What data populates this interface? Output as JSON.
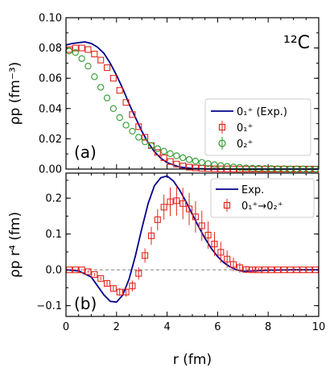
{
  "chart_data": [
    {
      "panel": "(a)",
      "type": "line",
      "annotation": "¹²C",
      "ylabel": "ρp (fm⁻³)",
      "xlim": [
        0,
        10
      ],
      "ylim": [
        0,
        0.1
      ],
      "yticks": [
        0.0,
        0.02,
        0.04,
        0.06,
        0.08,
        0.1
      ],
      "ytick_labels": [
        "0.00",
        "0.02",
        "0.04",
        "0.06",
        "0.08",
        "0.10"
      ],
      "legend_position": "center-right",
      "series": [
        {
          "name": "0₁⁺ (Exp.)",
          "style": "line",
          "color": "#00008b",
          "x": [
            0,
            0.25,
            0.5,
            0.75,
            1.0,
            1.25,
            1.5,
            1.75,
            2.0,
            2.25,
            2.5,
            2.75,
            3.0,
            3.25,
            3.5,
            3.75,
            4.0,
            4.5,
            5.0,
            5.5,
            6.0,
            7.0,
            8.0,
            10.0
          ],
          "y": [
            0.082,
            0.083,
            0.0835,
            0.084,
            0.083,
            0.0805,
            0.0765,
            0.07,
            0.062,
            0.053,
            0.043,
            0.034,
            0.025,
            0.0175,
            0.0115,
            0.0072,
            0.0043,
            0.0013,
            0.0004,
            0.0001,
            0.0,
            0.0,
            0.0,
            0.0
          ]
        },
        {
          "name": "0₁⁺",
          "style": "square-markers",
          "color": "#e8251f",
          "x": [
            0.125,
            0.375,
            0.625,
            0.875,
            1.125,
            1.375,
            1.625,
            1.875,
            2.125,
            2.375,
            2.625,
            2.875,
            3.125,
            3.375,
            3.625,
            3.875,
            4.125,
            4.375,
            4.625,
            4.875,
            5.125,
            5.375,
            5.625,
            5.875,
            6.125,
            6.375,
            6.625,
            6.875,
            7.125,
            7.375,
            7.625,
            7.875,
            8.125,
            8.375,
            8.625,
            8.875,
            9.125,
            9.375,
            9.625,
            9.875
          ],
          "y": [
            0.079,
            0.08,
            0.08,
            0.079,
            0.076,
            0.072,
            0.067,
            0.06,
            0.052,
            0.044,
            0.036,
            0.028,
            0.021,
            0.0155,
            0.011,
            0.0075,
            0.005,
            0.0033,
            0.0021,
            0.0013,
            0.0008,
            0.0005,
            0.0003,
            0.0002,
            0.0001,
            0.0001,
            0.0,
            0.0,
            0.0,
            0.0,
            0.0,
            0.0,
            0.0,
            0.0,
            0.0,
            0.0,
            0.0,
            0.0,
            0.0,
            0.0
          ]
        },
        {
          "name": "0₂⁺",
          "style": "circle-markers",
          "color": "#2e9a2e",
          "x": [
            0.125,
            0.375,
            0.625,
            0.875,
            1.125,
            1.375,
            1.625,
            1.875,
            2.125,
            2.375,
            2.625,
            2.875,
            3.125,
            3.375,
            3.625,
            3.875,
            4.125,
            4.375,
            4.625,
            4.875,
            5.125,
            5.375,
            5.625,
            5.875,
            6.125,
            6.375,
            6.625,
            6.875,
            7.125,
            7.375,
            7.625,
            7.875,
            8.125,
            8.375,
            8.625,
            8.875,
            9.125,
            9.375,
            9.625,
            9.875
          ],
          "y": [
            0.078,
            0.077,
            0.073,
            0.068,
            0.061,
            0.054,
            0.047,
            0.04,
            0.034,
            0.029,
            0.025,
            0.021,
            0.018,
            0.0155,
            0.0135,
            0.0118,
            0.0102,
            0.0088,
            0.0075,
            0.0063,
            0.0053,
            0.0044,
            0.0036,
            0.0029,
            0.0023,
            0.0018,
            0.0014,
            0.0011,
            0.0008,
            0.0006,
            0.0005,
            0.0004,
            0.0003,
            0.0002,
            0.0002,
            0.0001,
            0.0001,
            0.0001,
            0.0,
            0.0
          ]
        }
      ]
    },
    {
      "panel": "(b)",
      "type": "line",
      "xlabel": "r (fm)",
      "ylabel": "ρp r⁴ (fm)",
      "xlim": [
        0,
        10
      ],
      "ylim": [
        -0.13,
        0.27
      ],
      "xticks": [
        0,
        2,
        4,
        6,
        8,
        10
      ],
      "xtick_labels": [
        "0",
        "2",
        "4",
        "6",
        "8",
        "10"
      ],
      "yticks": [
        -0.1,
        0.0,
        0.1,
        0.2
      ],
      "ytick_labels": [
        "−0.1",
        "0.0",
        "0.1",
        "0.2"
      ],
      "reference_line_y": 0,
      "legend_position": "top-right",
      "series": [
        {
          "name": "Exp.",
          "style": "line",
          "color": "#00008b",
          "x": [
            0,
            0.5,
            1.0,
            1.25,
            1.5,
            1.75,
            2.0,
            2.25,
            2.5,
            2.75,
            3.0,
            3.25,
            3.5,
            3.75,
            4.0,
            4.25,
            4.5,
            4.75,
            5.0,
            5.25,
            5.5,
            5.75,
            6.0,
            6.25,
            6.5,
            6.75,
            7.0,
            7.5,
            8.0,
            9.0,
            10.0
          ],
          "y": [
            0.0,
            -0.003,
            -0.02,
            -0.045,
            -0.07,
            -0.088,
            -0.09,
            -0.07,
            -0.025,
            0.04,
            0.115,
            0.185,
            0.235,
            0.257,
            0.262,
            0.248,
            0.222,
            0.19,
            0.155,
            0.12,
            0.088,
            0.06,
            0.037,
            0.02,
            0.008,
            0.0,
            -0.004,
            -0.003,
            -0.001,
            0.0,
            0.0
          ]
        },
        {
          "name": "0₁⁺→0₂⁺",
          "style": "square-markers-with-errorbars",
          "color": "#e8251f",
          "x": [
            0.125,
            0.375,
            0.625,
            0.875,
            1.125,
            1.375,
            1.625,
            1.875,
            2.125,
            2.375,
            2.625,
            2.875,
            3.125,
            3.375,
            3.625,
            3.875,
            4.125,
            4.375,
            4.625,
            4.875,
            5.125,
            5.375,
            5.625,
            5.875,
            6.125,
            6.375,
            6.625,
            6.875,
            7.125,
            7.375,
            7.625,
            7.875,
            8.125,
            8.375,
            8.625,
            8.875,
            9.125,
            9.375,
            9.625,
            9.875
          ],
          "y": [
            0.0,
            0.0,
            0.0,
            -0.005,
            -0.013,
            -0.024,
            -0.038,
            -0.052,
            -0.062,
            -0.062,
            -0.045,
            -0.01,
            0.04,
            0.095,
            0.14,
            0.175,
            0.19,
            0.193,
            0.185,
            0.17,
            0.148,
            0.123,
            0.097,
            0.072,
            0.049,
            0.03,
            0.015,
            0.006,
            0.001,
            0.0,
            0.0,
            0.0,
            0.0,
            0.0,
            0.0,
            0.0,
            0.0,
            0.0,
            0.0,
            0.0
          ],
          "err": [
            0.002,
            0.002,
            0.002,
            0.003,
            0.004,
            0.005,
            0.007,
            0.009,
            0.011,
            0.013,
            0.015,
            0.017,
            0.02,
            0.025,
            0.03,
            0.035,
            0.04,
            0.042,
            0.044,
            0.045,
            0.044,
            0.042,
            0.038,
            0.034,
            0.029,
            0.024,
            0.019,
            0.014,
            0.01,
            0.007,
            0.005,
            0.004,
            0.003,
            0.003,
            0.002,
            0.002,
            0.002,
            0.002,
            0.002,
            0.002
          ]
        }
      ]
    }
  ]
}
